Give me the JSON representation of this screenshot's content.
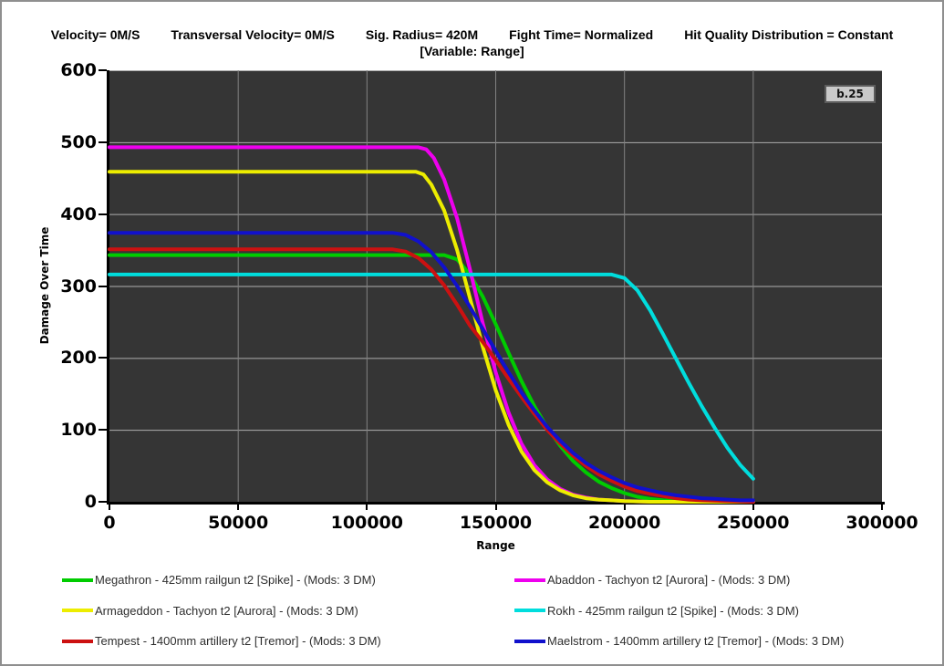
{
  "header": {
    "params": [
      "Velocity= 0M/S",
      "Transversal Velocity= 0M/S",
      "Sig. Radius= 420M",
      "Fight Time= Normalized",
      "Hit Quality Distribution = Constant"
    ],
    "variable_line": "[Variable: Range]"
  },
  "badge": {
    "label": "b.25"
  },
  "chart_data": {
    "type": "line",
    "title": "",
    "xlabel": "Range",
    "ylabel": "Damage Over Time",
    "xlim": [
      0,
      300000
    ],
    "ylim": [
      0,
      600
    ],
    "x_ticks": [
      0,
      50000,
      100000,
      150000,
      200000,
      250000,
      300000
    ],
    "y_ticks": [
      0,
      100,
      200,
      300,
      400,
      500,
      600
    ],
    "grid": true,
    "legend_position": "bottom-two-columns",
    "colors": {
      "plot_bg": "#353535",
      "h_gridline": "#aeaeae",
      "v_gridline": "#828282",
      "axis": "#000000"
    },
    "series": [
      {
        "name": "Megathron - 425mm railgun t2 [Spike] - (Mods: 3 DM)",
        "slug": "megathron",
        "color": "#00cc00",
        "points": [
          [
            0,
            343
          ],
          [
            130000,
            343
          ],
          [
            135000,
            337
          ],
          [
            140000,
            316
          ],
          [
            145000,
            285
          ],
          [
            150000,
            247
          ],
          [
            155000,
            207
          ],
          [
            160000,
            168
          ],
          [
            165000,
            133
          ],
          [
            170000,
            103
          ],
          [
            175000,
            78
          ],
          [
            180000,
            57
          ],
          [
            185000,
            41
          ],
          [
            190000,
            28
          ],
          [
            195000,
            19
          ],
          [
            200000,
            12
          ],
          [
            205000,
            7
          ],
          [
            210000,
            4
          ],
          [
            215000,
            2
          ],
          [
            220000,
            1
          ],
          [
            230000,
            0
          ],
          [
            250000,
            0
          ]
        ]
      },
      {
        "name": "Abaddon - Tachyon t2 [Aurora] - (Mods: 3 DM)",
        "slug": "abaddon",
        "color": "#ee00ee",
        "points": [
          [
            0,
            493
          ],
          [
            120000,
            493
          ],
          [
            123000,
            490
          ],
          [
            126000,
            478
          ],
          [
            130000,
            448
          ],
          [
            135000,
            394
          ],
          [
            140000,
            323
          ],
          [
            145000,
            248
          ],
          [
            150000,
            180
          ],
          [
            155000,
            124
          ],
          [
            160000,
            81
          ],
          [
            165000,
            51
          ],
          [
            170000,
            31
          ],
          [
            175000,
            18
          ],
          [
            180000,
            10
          ],
          [
            185000,
            6
          ],
          [
            190000,
            3
          ],
          [
            195000,
            2
          ],
          [
            200000,
            1
          ],
          [
            210000,
            0
          ],
          [
            250000,
            0
          ]
        ]
      },
      {
        "name": "Armageddon - Tachyon t2 [Aurora] - (Mods: 3 DM)",
        "slug": "armageddon",
        "color": "#eded00",
        "points": [
          [
            0,
            459
          ],
          [
            119000,
            459
          ],
          [
            122000,
            455
          ],
          [
            125000,
            441
          ],
          [
            130000,
            405
          ],
          [
            135000,
            350
          ],
          [
            140000,
            283
          ],
          [
            145000,
            215
          ],
          [
            150000,
            155
          ],
          [
            155000,
            107
          ],
          [
            160000,
            70
          ],
          [
            165000,
            44
          ],
          [
            170000,
            27
          ],
          [
            175000,
            16
          ],
          [
            180000,
            9
          ],
          [
            185000,
            5
          ],
          [
            190000,
            3
          ],
          [
            195000,
            2
          ],
          [
            200000,
            1
          ],
          [
            210000,
            0
          ],
          [
            250000,
            0
          ]
        ]
      },
      {
        "name": "Rokh - 425mm railgun t2 [Spike] - (Mods: 3 DM)",
        "slug": "rokh",
        "color": "#00dddd",
        "points": [
          [
            0,
            316
          ],
          [
            195000,
            316
          ],
          [
            200000,
            311
          ],
          [
            205000,
            294
          ],
          [
            210000,
            266
          ],
          [
            215000,
            233
          ],
          [
            220000,
            199
          ],
          [
            225000,
            165
          ],
          [
            230000,
            133
          ],
          [
            235000,
            103
          ],
          [
            240000,
            75
          ],
          [
            245000,
            51
          ],
          [
            250000,
            32
          ]
        ]
      },
      {
        "name": "Tempest - 1400mm artillery t2 [Tremor] - (Mods: 3 DM)",
        "slug": "tempest",
        "color": "#cc1111",
        "points": [
          [
            0,
            351
          ],
          [
            110000,
            351
          ],
          [
            115000,
            348
          ],
          [
            120000,
            339
          ],
          [
            125000,
            323
          ],
          [
            130000,
            301
          ],
          [
            135000,
            274
          ],
          [
            140000,
            245
          ],
          [
            145000,
            222
          ],
          [
            150000,
            197
          ],
          [
            155000,
            171
          ],
          [
            160000,
            146
          ],
          [
            165000,
            122
          ],
          [
            170000,
            100
          ],
          [
            175000,
            81
          ],
          [
            180000,
            64
          ],
          [
            185000,
            50
          ],
          [
            190000,
            38
          ],
          [
            195000,
            29
          ],
          [
            200000,
            21
          ],
          [
            205000,
            15
          ],
          [
            210000,
            11
          ],
          [
            215000,
            8
          ],
          [
            220000,
            5
          ],
          [
            225000,
            3
          ],
          [
            230000,
            2
          ],
          [
            240000,
            1
          ],
          [
            250000,
            0
          ]
        ]
      },
      {
        "name": "Maelstrom - 1400mm artillery t2 [Tremor] - (Mods: 3 DM)",
        "slug": "maelstrom",
        "color": "#1111cc",
        "points": [
          [
            0,
            374
          ],
          [
            110000,
            374
          ],
          [
            115000,
            371
          ],
          [
            120000,
            362
          ],
          [
            125000,
            347
          ],
          [
            130000,
            326
          ],
          [
            135000,
            300
          ],
          [
            140000,
            271
          ],
          [
            145000,
            240
          ],
          [
            150000,
            210
          ],
          [
            155000,
            180
          ],
          [
            160000,
            152
          ],
          [
            165000,
            127
          ],
          [
            170000,
            104
          ],
          [
            175000,
            85
          ],
          [
            180000,
            68
          ],
          [
            185000,
            54
          ],
          [
            190000,
            43
          ],
          [
            195000,
            34
          ],
          [
            200000,
            26
          ],
          [
            205000,
            20
          ],
          [
            210000,
            16
          ],
          [
            215000,
            12
          ],
          [
            220000,
            9
          ],
          [
            225000,
            7
          ],
          [
            230000,
            5
          ],
          [
            235000,
            4
          ],
          [
            240000,
            3
          ],
          [
            245000,
            2
          ],
          [
            250000,
            2
          ]
        ]
      }
    ],
    "legend_columns": [
      [
        0,
        2,
        4
      ],
      [
        1,
        3,
        5
      ]
    ]
  }
}
